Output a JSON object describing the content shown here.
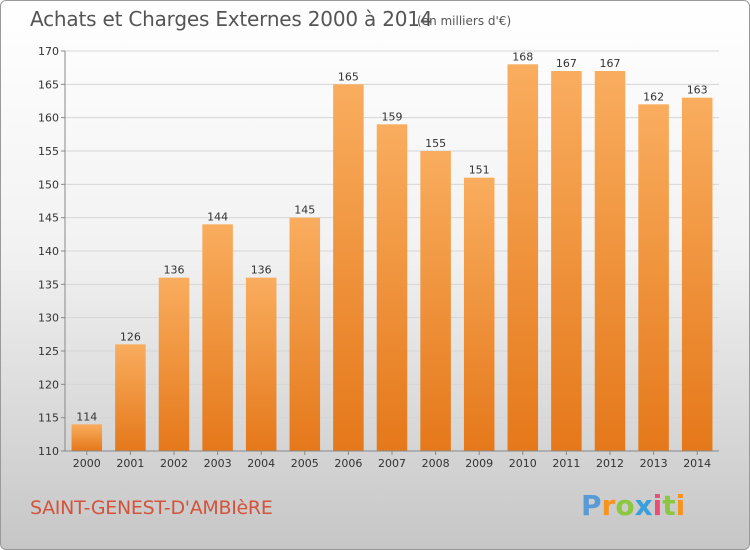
{
  "chart_data": {
    "type": "bar",
    "title": "Achats et Charges Externes 2000 à 2014",
    "subtitle": "(en milliers d'€)",
    "categories": [
      "2000",
      "2001",
      "2002",
      "2003",
      "2004",
      "2005",
      "2006",
      "2007",
      "2008",
      "2009",
      "2010",
      "2011",
      "2012",
      "2013",
      "2014"
    ],
    "values": [
      114,
      126,
      136,
      144,
      136,
      145,
      165,
      159,
      155,
      151,
      168,
      167,
      167,
      162,
      163
    ],
    "ylim": [
      110,
      170
    ],
    "yticks": [
      110,
      115,
      120,
      125,
      130,
      135,
      140,
      145,
      150,
      155,
      160,
      165,
      170
    ],
    "grid": true,
    "bar_color": "#f08a24",
    "bar_color_light": "#f8aa5c"
  },
  "commune": "SAINT-GENEST-D'AMBIèRE",
  "logo": {
    "letters": [
      "P",
      "r",
      "o",
      "x",
      "i",
      "t",
      "i"
    ],
    "colors": [
      "#5b9bd5",
      "#f7941d",
      "#8dc63f",
      "#3aa0dc",
      "#e94e77",
      "#8dc63f",
      "#f7941d"
    ]
  }
}
